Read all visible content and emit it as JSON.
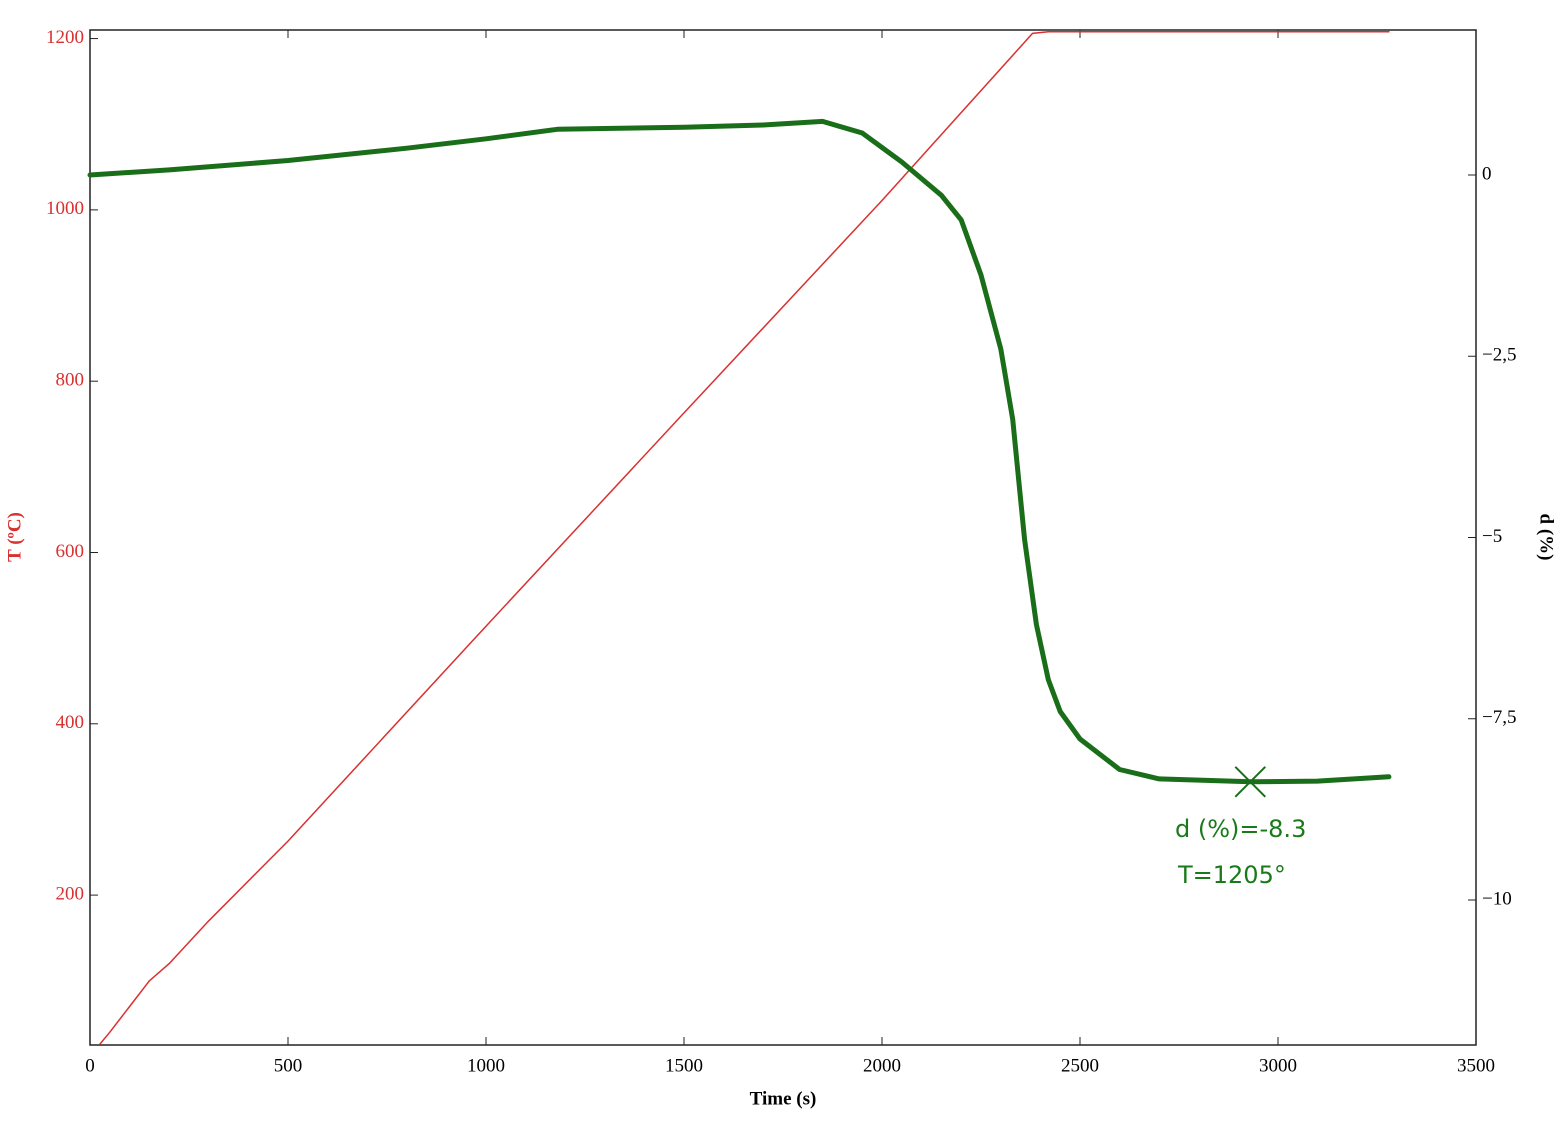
{
  "chart_data": {
    "type": "line",
    "x_label": "Time (s)",
    "y_label": "T (ºC)",
    "y2_label": "d (%)",
    "xlim": [
      0,
      3500
    ],
    "xticks": [
      0,
      500,
      1000,
      1500,
      2000,
      2500,
      3000,
      3500
    ],
    "ylim": [
      25,
      1210
    ],
    "yticks": [
      200,
      400,
      600,
      800,
      1000,
      1200
    ],
    "y2lim": [
      -12,
      2
    ],
    "y2ticks": [
      0,
      {
        "value": -2.5,
        "label": "−2,5"
      },
      {
        "value": -5,
        "label": "−5"
      },
      {
        "value": -7.5,
        "label": "−7,5"
      },
      {
        "value": -10,
        "label": "−10"
      }
    ],
    "series": [
      {
        "name": "T (ºC)",
        "color": "#d93030",
        "width": 1.5,
        "x": [
          25,
          50,
          100,
          150,
          200,
          300,
          500,
          1000,
          1500,
          2000,
          2380,
          2420,
          3280
        ],
        "values": [
          26,
          40,
          70,
          100,
          120,
          170,
          263,
          514,
          763,
          1011,
          1206,
          1208,
          1208
        ]
      },
      {
        "name": "d (%)",
        "color": "#1a6e1a",
        "width": 5,
        "axis": "y2",
        "x": [
          0,
          200,
          500,
          800,
          1000,
          1180,
          1500,
          1700,
          1850,
          1950,
          2050,
          2150,
          2200,
          2250,
          2300,
          2330,
          2360,
          2390,
          2420,
          2450,
          2500,
          2600,
          2700,
          2930,
          3100,
          3280
        ],
        "values": [
          0,
          0.07,
          0.2,
          0.37,
          0.5,
          0.63,
          0.66,
          0.69,
          0.74,
          0.58,
          0.18,
          -0.28,
          -0.62,
          -1.38,
          -2.4,
          -3.37,
          -5.03,
          -6.2,
          -6.96,
          -7.4,
          -7.78,
          -8.2,
          -8.33,
          -8.37,
          -8.36,
          -8.3
        ]
      }
    ],
    "marker": {
      "x": 2930,
      "y": -8.37,
      "color": "#1a6e1a"
    },
    "annotations": [
      "d (%)=-8.3",
      "T=1205°"
    ]
  }
}
